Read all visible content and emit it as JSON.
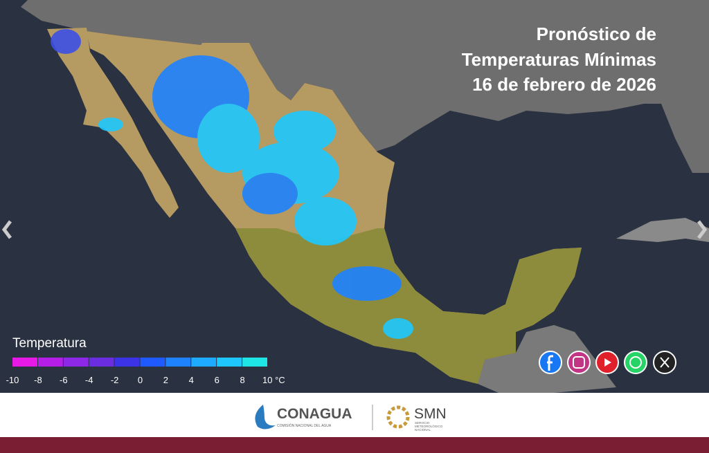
{
  "header": {
    "title_lines": [
      "Pronóstico de",
      "Temperaturas Mínimas",
      "16 de febrero de 2026"
    ]
  },
  "legend": {
    "title": "Temperatura",
    "ticks": [
      -10,
      -8,
      -6,
      -4,
      -2,
      0,
      2,
      4,
      6,
      8,
      {
        "value": 10,
        "label": "10 °C"
      }
    ],
    "colors": [
      "#e619e6",
      "#b41ee6",
      "#8c28e6",
      "#6a2ee0",
      "#3c32e6",
      "#1f5aff",
      "#1e82ff",
      "#1eaaff",
      "#1ec8ff",
      "#1ee6e6"
    ]
  },
  "footer": {
    "conagua": "CONAGUA",
    "conagua_sub": "COMISIÓN NACIONAL DEL AGUA",
    "smn": "SMN",
    "smn_sub": [
      "SERVICIO",
      "METEOROLÓGICO",
      "NACIONAL"
    ]
  }
}
